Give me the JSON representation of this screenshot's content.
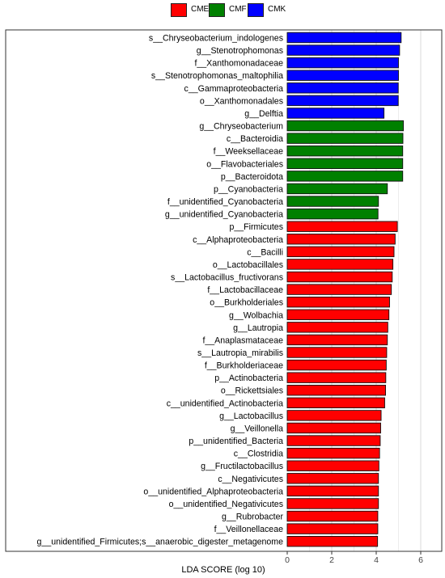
{
  "legend": {
    "items": [
      {
        "label": "CME",
        "color": "#ff0000"
      },
      {
        "label": "CMF",
        "color": "#008000"
      },
      {
        "label": "CMK",
        "color": "#0000ff"
      }
    ]
  },
  "chart_data": {
    "type": "bar",
    "orientation": "horizontal",
    "xlabel": "LDA SCORE (log 10)",
    "xlim": [
      0,
      6.6
    ],
    "xticks": [
      0,
      2,
      4,
      6
    ],
    "grid": true,
    "legend_position": "top-center",
    "group_colors": {
      "CME": "#ff0000",
      "CMF": "#008000",
      "CMK": "#0000ff"
    },
    "bars": [
      {
        "label": "s__Chryseobacterium_indologenes",
        "value": 5.12,
        "group": "CMK"
      },
      {
        "label": "g__Stenotrophomonas",
        "value": 5.05,
        "group": "CMK"
      },
      {
        "label": "f__Xanthomonadaceae",
        "value": 5.0,
        "group": "CMK"
      },
      {
        "label": "s__Stenotrophomonas_maltophilia",
        "value": 5.0,
        "group": "CMK"
      },
      {
        "label": "c__Gammaproteobacteria",
        "value": 4.99,
        "group": "CMK"
      },
      {
        "label": "o__Xanthomonadales",
        "value": 4.99,
        "group": "CMK"
      },
      {
        "label": "g__Delftia",
        "value": 4.35,
        "group": "CMK"
      },
      {
        "label": "g__Chryseobacterium",
        "value": 5.22,
        "group": "CMF"
      },
      {
        "label": "c__Bacteroidia",
        "value": 5.2,
        "group": "CMF"
      },
      {
        "label": "f__Weeksellaceae",
        "value": 5.19,
        "group": "CMF"
      },
      {
        "label": "o__Flavobacteriales",
        "value": 5.19,
        "group": "CMF"
      },
      {
        "label": "p__Bacteroidota",
        "value": 5.19,
        "group": "CMF"
      },
      {
        "label": "p__Cyanobacteria",
        "value": 4.5,
        "group": "CMF"
      },
      {
        "label": "f__unidentified_Cyanobacteria",
        "value": 4.1,
        "group": "CMF"
      },
      {
        "label": "g__unidentified_Cyanobacteria",
        "value": 4.08,
        "group": "CMF"
      },
      {
        "label": "p__Firmicutes",
        "value": 4.95,
        "group": "CME"
      },
      {
        "label": "c__Alphaproteobacteria",
        "value": 4.85,
        "group": "CME"
      },
      {
        "label": "c__Bacilli",
        "value": 4.8,
        "group": "CME"
      },
      {
        "label": "o__Lactobacillales",
        "value": 4.75,
        "group": "CME"
      },
      {
        "label": "s__Lactobacillus_fructivorans",
        "value": 4.72,
        "group": "CME"
      },
      {
        "label": "f__Lactobacillaceae",
        "value": 4.68,
        "group": "CME"
      },
      {
        "label": "o__Burkholderiales",
        "value": 4.6,
        "group": "CME"
      },
      {
        "label": "g__Wolbachia",
        "value": 4.57,
        "group": "CME"
      },
      {
        "label": "g__Lautropia",
        "value": 4.52,
        "group": "CME"
      },
      {
        "label": "f__Anaplasmataceae",
        "value": 4.5,
        "group": "CME"
      },
      {
        "label": "s__Lautropia_mirabilis",
        "value": 4.47,
        "group": "CME"
      },
      {
        "label": "f__Burkholderiaceae",
        "value": 4.45,
        "group": "CME"
      },
      {
        "label": "p__Actinobacteria",
        "value": 4.43,
        "group": "CME"
      },
      {
        "label": "o__Rickettsiales",
        "value": 4.42,
        "group": "CME"
      },
      {
        "label": "c__unidentified_Actinobacteria",
        "value": 4.38,
        "group": "CME"
      },
      {
        "label": "g__Lactobacillus",
        "value": 4.22,
        "group": "CME"
      },
      {
        "label": "g__Veillonella",
        "value": 4.2,
        "group": "CME"
      },
      {
        "label": "p__unidentified_Bacteria",
        "value": 4.18,
        "group": "CME"
      },
      {
        "label": "c__Clostridia",
        "value": 4.15,
        "group": "CME"
      },
      {
        "label": "g__Fructilactobacillus",
        "value": 4.12,
        "group": "CME"
      },
      {
        "label": "c__Negativicutes",
        "value": 4.1,
        "group": "CME"
      },
      {
        "label": "o__unidentified_Alphaproteobacteria",
        "value": 4.1,
        "group": "CME"
      },
      {
        "label": "o__unidentified_Negativicutes",
        "value": 4.1,
        "group": "CME"
      },
      {
        "label": "g__Rubrobacter",
        "value": 4.07,
        "group": "CME"
      },
      {
        "label": "f__Veillonellaceae",
        "value": 4.07,
        "group": "CME"
      },
      {
        "label": "g__unidentified_Firmicutes;s__anaerobic_digester_metagenome",
        "value": 4.06,
        "group": "CME"
      }
    ]
  }
}
